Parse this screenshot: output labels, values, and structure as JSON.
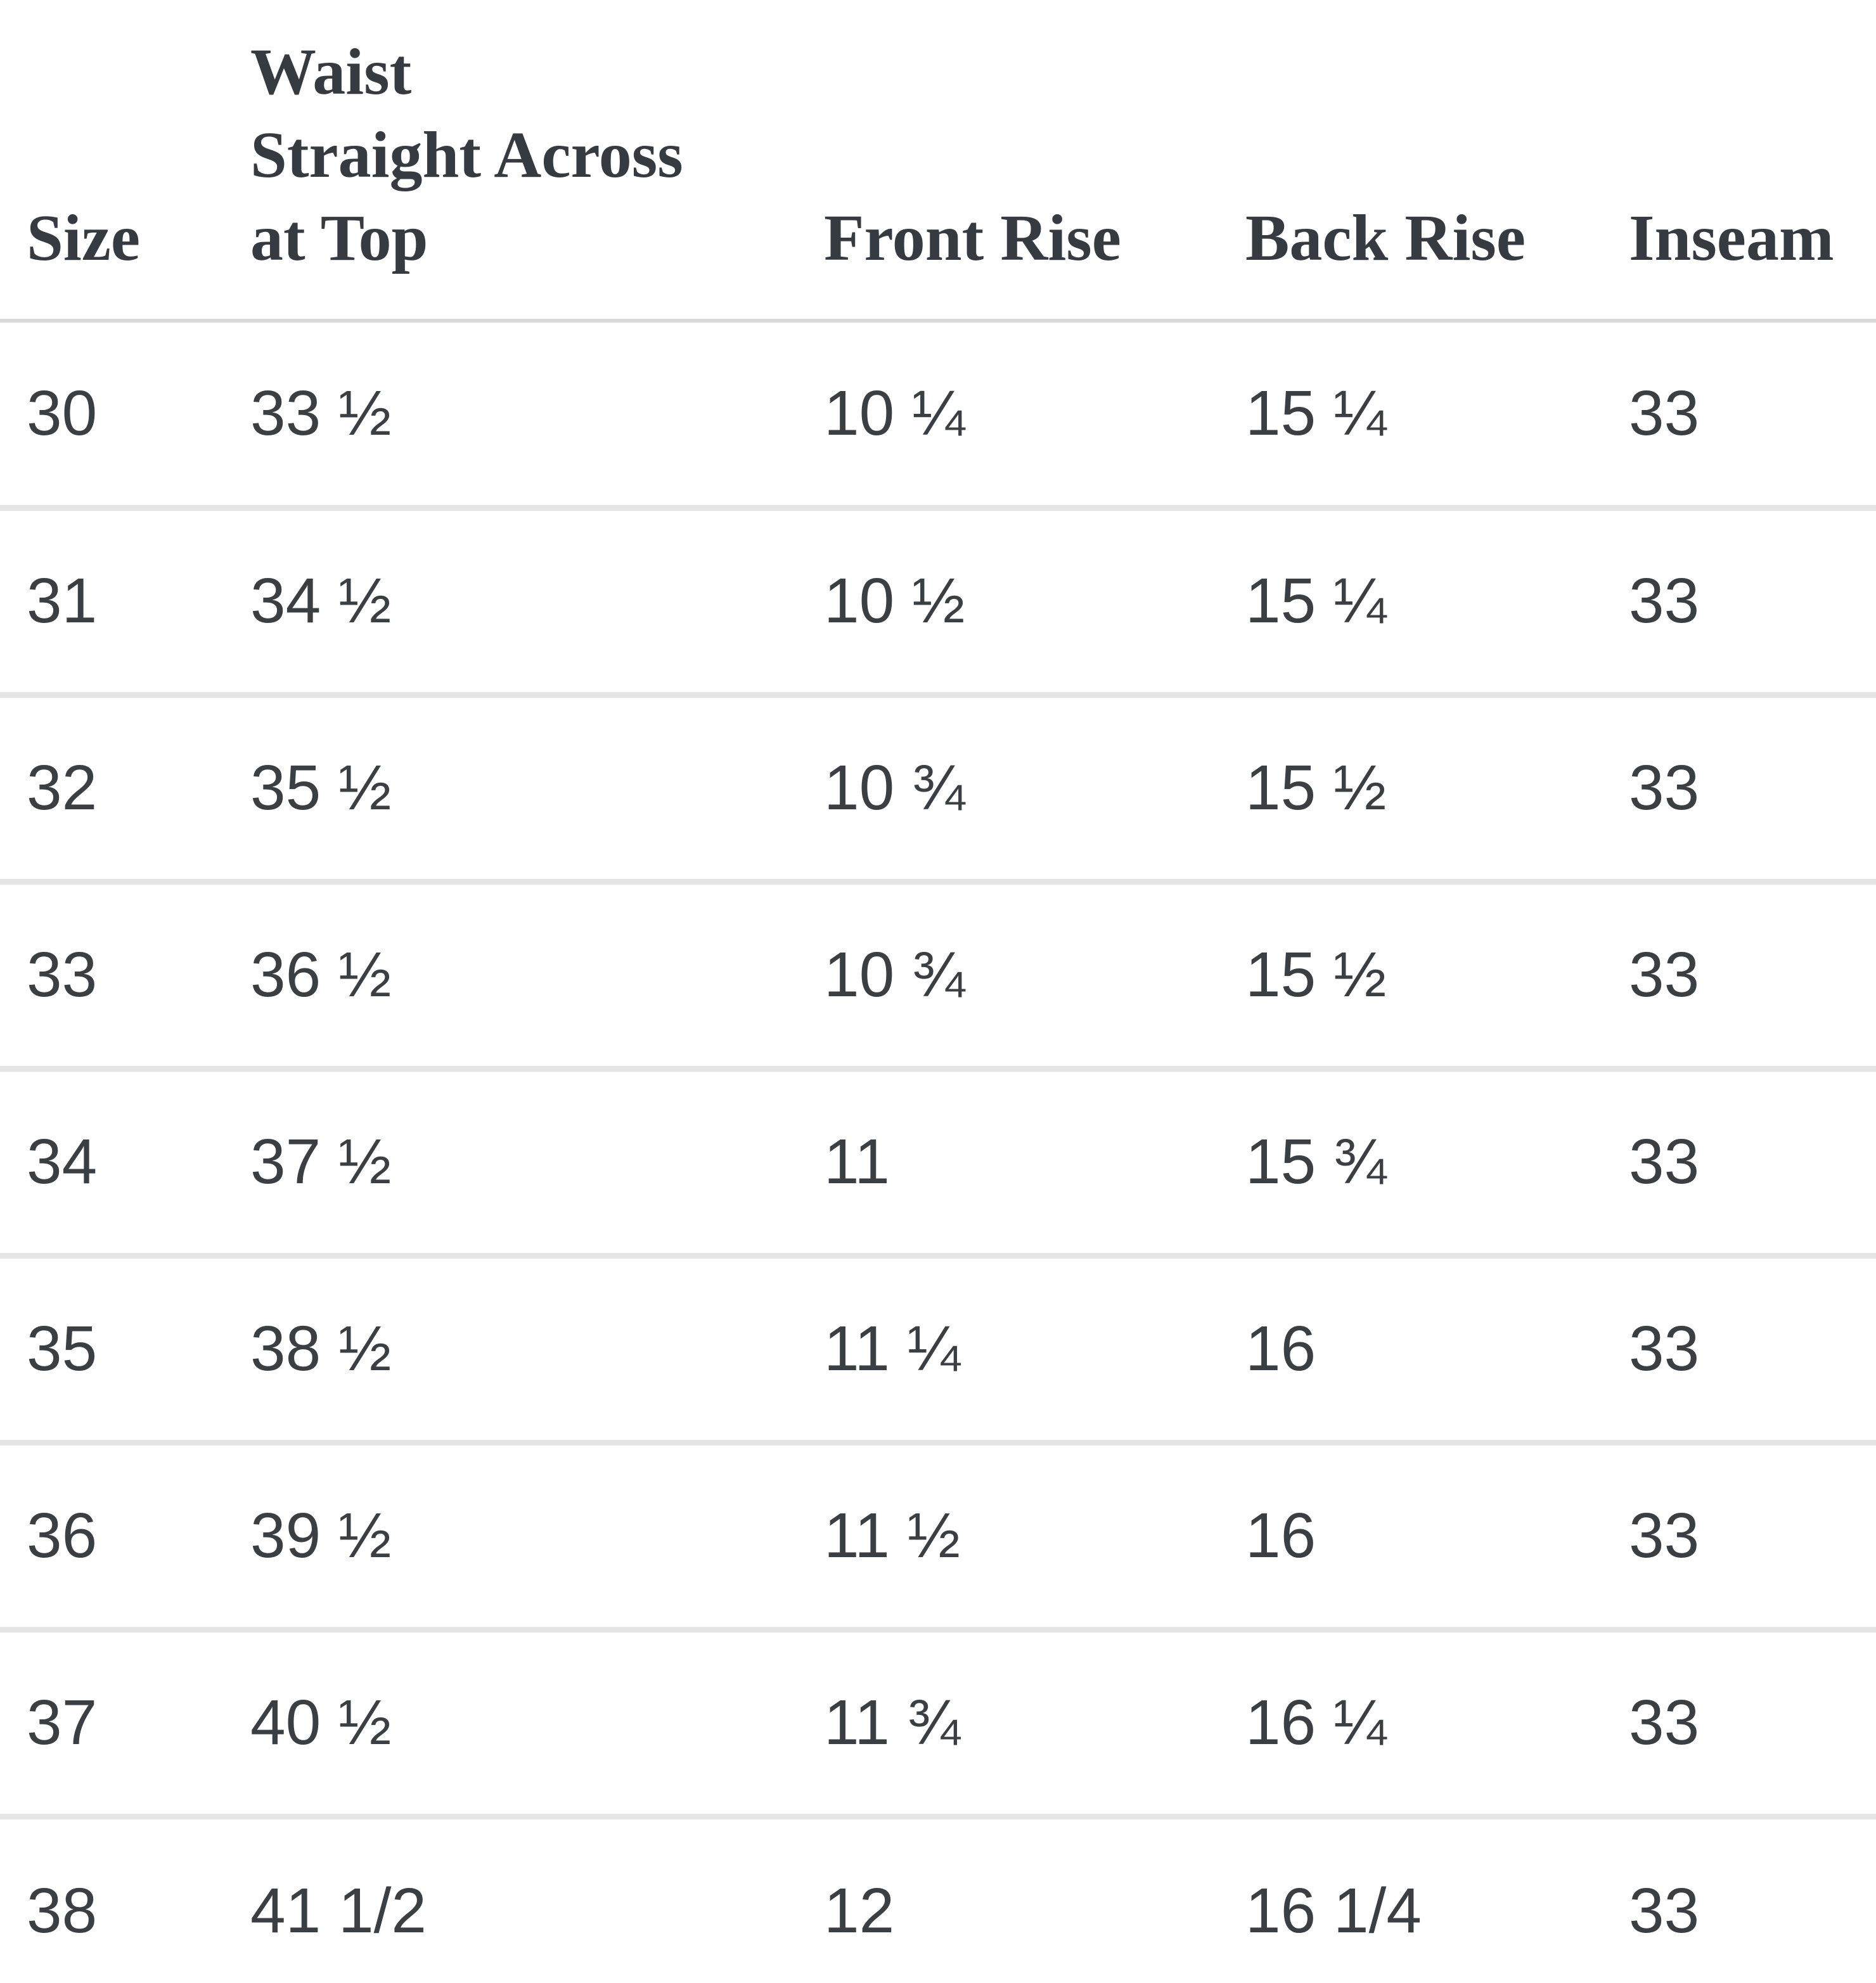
{
  "table": {
    "columns": [
      {
        "label": "Size"
      },
      {
        "label": "Waist\nStraight Across\nat Top"
      },
      {
        "label": "Front Rise"
      },
      {
        "label": "Back Rise"
      },
      {
        "label": "Inseam"
      }
    ],
    "rows": [
      [
        "30",
        "33 ½",
        "10 ¼",
        "15 ¼",
        "33"
      ],
      [
        "31",
        "34 ½",
        "10 ½",
        "15 ¼",
        "33"
      ],
      [
        "32",
        "35 ½",
        "10 ¾",
        "15 ½",
        "33"
      ],
      [
        "33",
        "36 ½",
        "10 ¾",
        "15 ½",
        "33"
      ],
      [
        "34",
        "37 ½",
        "11",
        "15 ¾",
        "33"
      ],
      [
        "35",
        "38 ½",
        "11 ¼",
        "16",
        "33"
      ],
      [
        "36",
        "39 ½",
        "11 ½",
        "16",
        "33"
      ],
      [
        "37",
        "40 ½",
        "11 ¾",
        "16 ¼",
        "33"
      ],
      [
        "38",
        "41 1/2",
        "12",
        "16 1/4",
        "33"
      ]
    ]
  },
  "colors": {
    "text": "#3a3f44",
    "header_text": "#353b41",
    "row_separator": "#e5e5e5",
    "header_separator": "#d9d9d9",
    "background": "#ffffff"
  }
}
